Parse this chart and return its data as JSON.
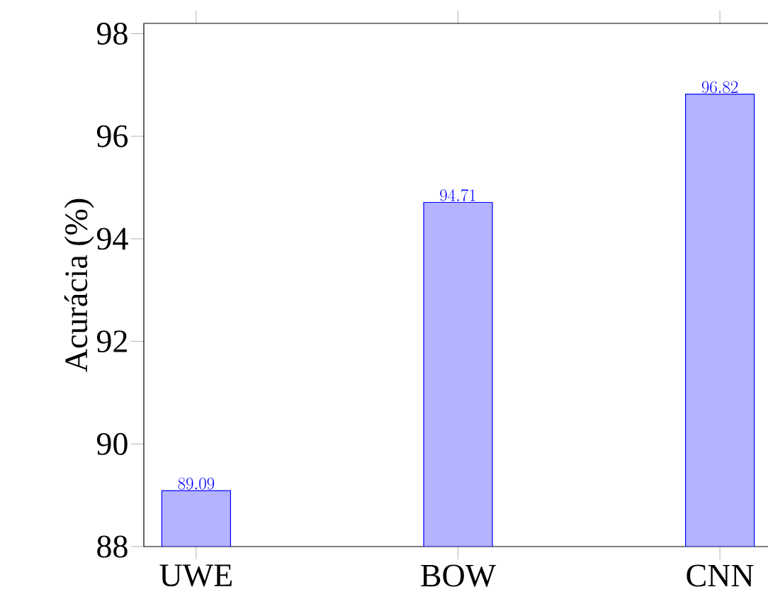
{
  "chart_data": {
    "type": "bar",
    "ylabel": "Acurácia (%)",
    "categories": [
      "UWE",
      "BOW",
      "CNN"
    ],
    "values": [
      89.09,
      94.71,
      96.82
    ],
    "color": "#b3b3ff",
    "ylim": [
      88,
      98.2
    ],
    "yticks": [
      88,
      90,
      92,
      94,
      96,
      98
    ],
    "data_labels": true
  }
}
